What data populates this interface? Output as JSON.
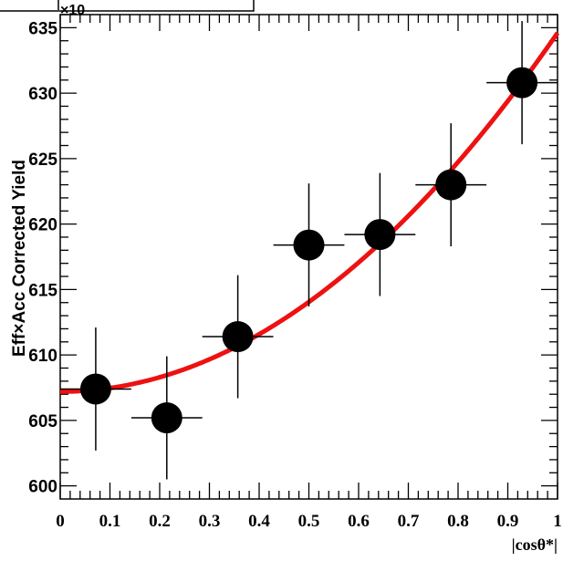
{
  "chart_data": {
    "type": "scatter",
    "xlabel": "|cosθ*|",
    "ylabel": "Eff×Acc Corrected Yield",
    "y_exponent_label": "×10",
    "xlim": [
      0,
      1
    ],
    "ylim": [
      599,
      636
    ],
    "x_ticks": [
      "0",
      "0.1",
      "0.2",
      "0.3",
      "0.4",
      "0.5",
      "0.6",
      "0.7",
      "0.8",
      "0.9",
      "1"
    ],
    "y_ticks": [
      "600",
      "605",
      "610",
      "615",
      "620",
      "625",
      "630",
      "635"
    ],
    "series": [
      {
        "x": [
          0.0714,
          0.2143,
          0.3571,
          0.5,
          0.6429,
          0.7857,
          0.9286
        ],
        "y": [
          607.4,
          605.2,
          611.4,
          618.4,
          619.2,
          623.0,
          630.8
        ],
        "yerr": [
          4.7,
          4.7,
          4.7,
          4.7,
          4.7,
          4.7,
          4.7
        ],
        "xerr": [
          0.0714,
          0.0714,
          0.0714,
          0.0714,
          0.0714,
          0.0714,
          0.0714
        ],
        "color": "#000000"
      }
    ],
    "fit": {
      "type": "quadratic",
      "a": 607.2,
      "b": 0,
      "c": 27.4,
      "color": "#ee1111"
    },
    "grid": false,
    "legend": "none"
  }
}
